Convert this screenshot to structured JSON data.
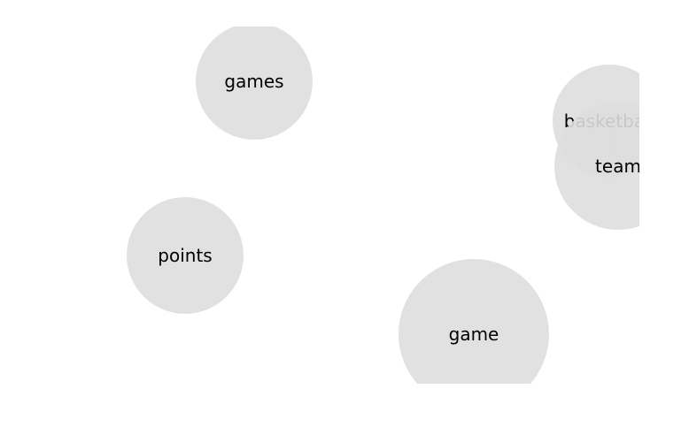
{
  "graph": {
    "node_fill": "#dedede",
    "node_opacity": 0.9,
    "edge_color": "#999999",
    "nodes": [
      {
        "id": "games",
        "label": "games"
      },
      {
        "id": "points",
        "label": "points"
      },
      {
        "id": "game",
        "label": "game"
      },
      {
        "id": "basketball",
        "label": "basketball"
      },
      {
        "id": "team",
        "label": "team"
      }
    ],
    "edges": [
      {
        "source": "basketball",
        "target": "team"
      }
    ]
  }
}
